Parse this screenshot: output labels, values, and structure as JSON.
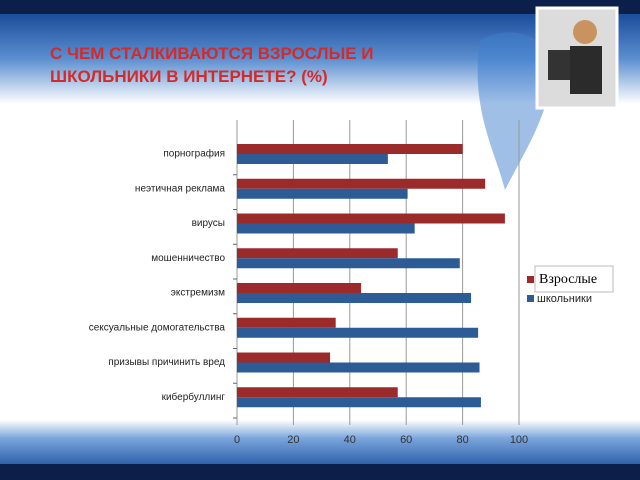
{
  "chart_data": {
    "type": "hbar",
    "title": "С ЧЕМ СТАЛКИВАЮТСЯ ВЗРОСЛЫЕ И ШКОЛЬНИКИ В ИНТЕРНЕТЕ? (%)",
    "categories": [
      "порнография",
      "неэтичная реклама",
      "вирусы",
      "мошенничество",
      "экстремизм",
      "сексуальные домогательства",
      "призывы причинить вред",
      "кибербуллинг"
    ],
    "series": [
      {
        "name": "Взрослые",
        "color": "#9b2b2b",
        "values": [
          80,
          88,
          95,
          57,
          44,
          35,
          33,
          57
        ]
      },
      {
        "name": "школьники",
        "color": "#2c5b95",
        "values": [
          53.5,
          60.5,
          63,
          79,
          83,
          85.5,
          86,
          86.5
        ]
      }
    ],
    "xlim": [
      0,
      100
    ],
    "xticks": [
      0,
      20,
      40,
      60,
      80,
      100
    ],
    "grid": true
  }
}
